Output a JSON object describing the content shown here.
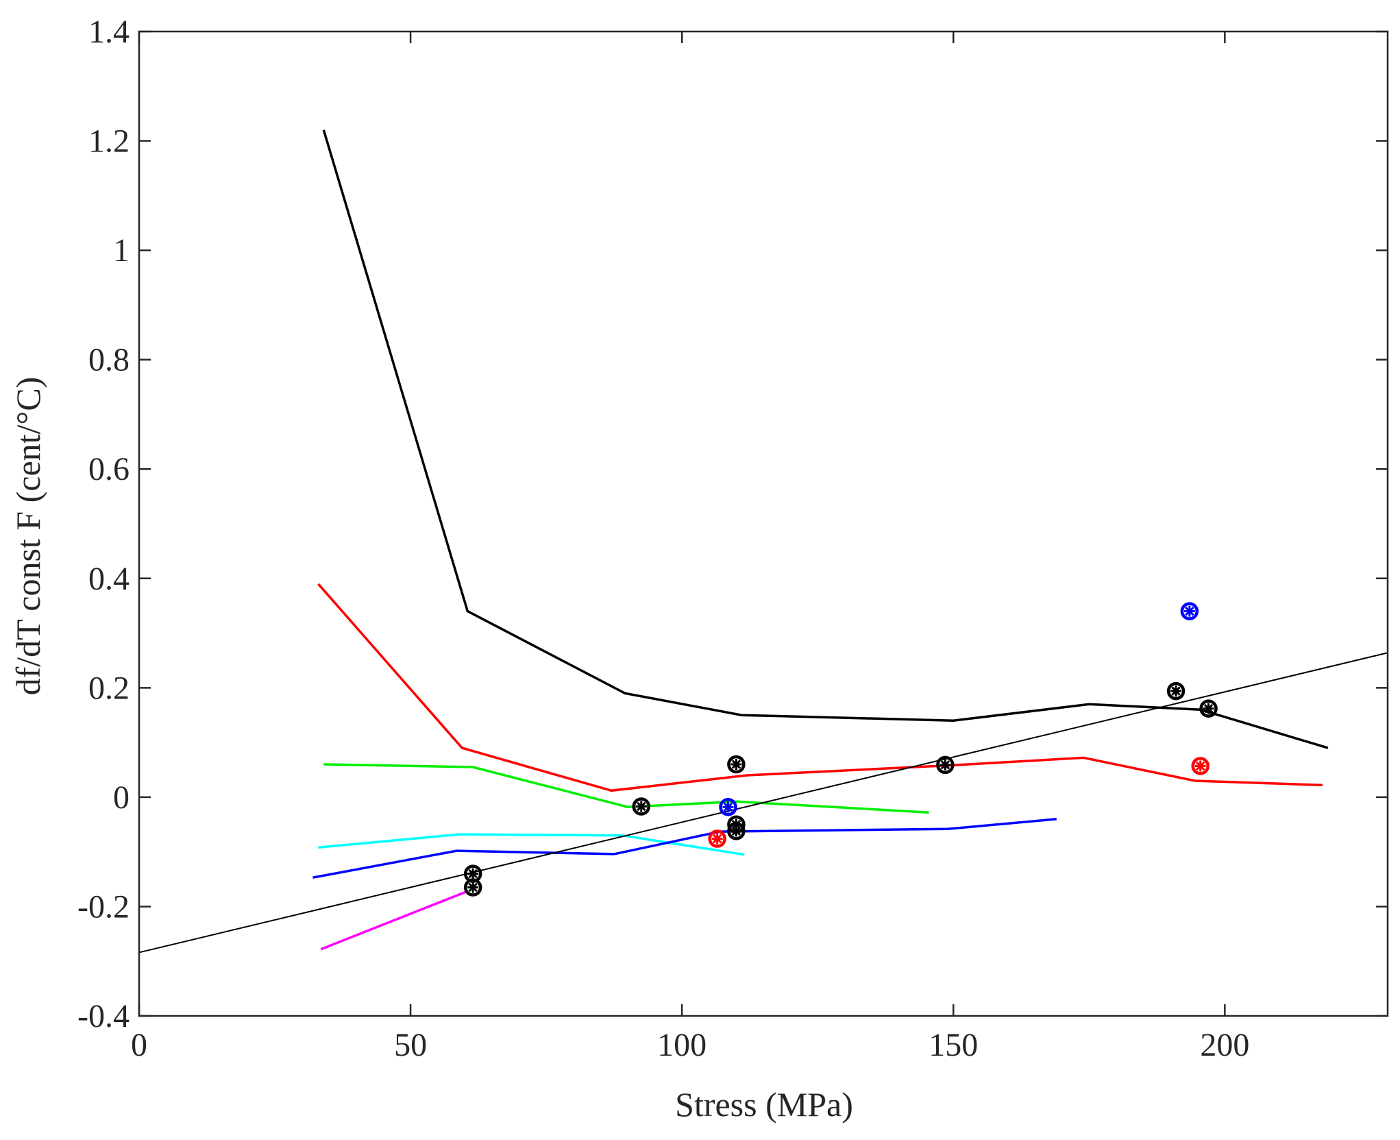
{
  "chart_data": {
    "type": "line",
    "title": "",
    "xlabel": "Stress (MPa)",
    "ylabel": "df/dT const F (cent/°C)",
    "xlim": [
      0,
      230
    ],
    "ylim": [
      -0.4,
      1.4
    ],
    "xticks": [
      0,
      50,
      100,
      150,
      200
    ],
    "yticks": [
      -0.4,
      -0.2,
      0,
      0.2,
      0.4,
      0.6,
      0.8,
      1,
      1.2,
      1.4
    ],
    "xtick_labels": [
      "0",
      "50",
      "100",
      "150",
      "200"
    ],
    "ytick_labels": [
      "-0.4",
      "-0.2",
      "0",
      "0.2",
      "0.4",
      "0.6",
      "0.8",
      "1",
      "1.2",
      "1.4"
    ],
    "grid": false,
    "series": [
      {
        "name": "black curve",
        "color": "#000000",
        "x": [
          34,
          60.5,
          89.5,
          111,
          150,
          175,
          195.5,
          219
        ],
        "y": [
          1.22,
          0.34,
          0.19,
          0.15,
          0.14,
          0.17,
          0.16,
          0.09
        ]
      },
      {
        "name": "red curve",
        "color": "#ff0000",
        "x": [
          33,
          59.5,
          87,
          112,
          149,
          174,
          194.5,
          218
        ],
        "y": [
          0.39,
          0.09,
          0.012,
          0.04,
          0.058,
          0.072,
          0.03,
          0.022
        ]
      },
      {
        "name": "green curve",
        "color": "#00ee00",
        "x": [
          34,
          61.5,
          90,
          110,
          145.5
        ],
        "y": [
          0.06,
          0.055,
          -0.018,
          -0.008,
          -0.028
        ]
      },
      {
        "name": "cyan curve",
        "color": "#00ffff",
        "x": [
          33,
          59,
          89,
          111.5
        ],
        "y": [
          -0.092,
          -0.068,
          -0.07,
          -0.105
        ]
      },
      {
        "name": "blue curve",
        "color": "#0000ff",
        "x": [
          32,
          58.5,
          87.5,
          107,
          149,
          169
        ],
        "y": [
          -0.147,
          -0.098,
          -0.104,
          -0.063,
          -0.058,
          -0.04
        ]
      },
      {
        "name": "magenta curve",
        "color": "#ff00ff",
        "x": [
          33.5,
          60.5
        ],
        "y": [
          -0.278,
          -0.172
        ]
      }
    ],
    "fit_line": {
      "name": "linear fit",
      "color": "#000000",
      "x": [
        0,
        230
      ],
      "y": [
        -0.284,
        0.264
      ]
    },
    "scatter": [
      {
        "name": "black points",
        "color": "#000000",
        "points": [
          [
            61.5,
            -0.14
          ],
          [
            61.5,
            -0.165
          ],
          [
            92.5,
            -0.017
          ],
          [
            110,
            0.06
          ],
          [
            110,
            -0.05
          ],
          [
            110,
            -0.062
          ],
          [
            148.5,
            0.059
          ],
          [
            191,
            0.194
          ],
          [
            197,
            0.162
          ]
        ]
      },
      {
        "name": "blue points",
        "color": "#0000ff",
        "points": [
          [
            108.5,
            -0.018
          ],
          [
            193.5,
            0.34
          ]
        ]
      },
      {
        "name": "red points",
        "color": "#ff0000",
        "points": [
          [
            106.5,
            -0.076
          ],
          [
            195.5,
            0.057
          ]
        ]
      }
    ]
  }
}
